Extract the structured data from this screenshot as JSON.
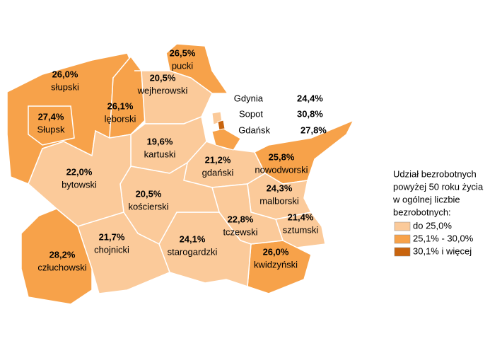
{
  "regions": [
    {
      "name": "słupski",
      "value": 26.0,
      "value_label": "26,0%",
      "color": "#f7a24a"
    },
    {
      "name": "Słupsk",
      "value": 27.4,
      "value_label": "27,4%",
      "color": "#f7a24a"
    },
    {
      "name": "lęborski",
      "value": 26.1,
      "value_label": "26,1%",
      "color": "#f7a24a"
    },
    {
      "name": "pucki",
      "value": 26.5,
      "value_label": "26,5%",
      "color": "#f7a24a"
    },
    {
      "name": "wejherowski",
      "value": 20.5,
      "value_label": "20,5%",
      "color": "#fbca9a"
    },
    {
      "name": "kartuski",
      "value": 19.6,
      "value_label": "19,6%",
      "color": "#fbca9a"
    },
    {
      "name": "gdański",
      "value": 21.2,
      "value_label": "21,2%",
      "color": "#fbca9a"
    },
    {
      "name": "nowodworski",
      "value": 25.8,
      "value_label": "25,8%",
      "color": "#f7a24a"
    },
    {
      "name": "malborski",
      "value": 24.3,
      "value_label": "24,3%",
      "color": "#fbca9a"
    },
    {
      "name": "sztumski",
      "value": 21.4,
      "value_label": "21,4%",
      "color": "#fbca9a"
    },
    {
      "name": "kwidzyński",
      "value": 26.0,
      "value_label": "26,0%",
      "color": "#f7a24a"
    },
    {
      "name": "tczewski",
      "value": 22.8,
      "value_label": "22,8%",
      "color": "#fbca9a"
    },
    {
      "name": "starogardzki",
      "value": 24.1,
      "value_label": "24,1%",
      "color": "#fbca9a"
    },
    {
      "name": "kościerski",
      "value": 20.5,
      "value_label": "20,5%",
      "color": "#fbca9a"
    },
    {
      "name": "bytowski",
      "value": 22.0,
      "value_label": "22,0%",
      "color": "#fbca9a"
    },
    {
      "name": "chojnicki",
      "value": 21.7,
      "value_label": "21,7%",
      "color": "#fbca9a"
    },
    {
      "name": "człuchowski",
      "value": 28.2,
      "value_label": "28,2%",
      "color": "#f7a24a"
    }
  ],
  "cities": [
    {
      "name": "Gdynia",
      "value": 24.4,
      "value_label": "24,4%",
      "color": "#fbca9a"
    },
    {
      "name": "Sopot",
      "value": 30.8,
      "value_label": "30,8%",
      "color": "#c8640e"
    },
    {
      "name": "Gdańsk",
      "value": 27.8,
      "value_label": "27,8%",
      "color": "#f7a24a"
    }
  ],
  "legend": {
    "title_lines": [
      "Udział bezrobotnych",
      "powyżej 50 roku życia",
      "w ogólnej liczbie",
      "bezrobotnych:"
    ],
    "items": [
      {
        "label": "do 25,0%",
        "color": "#fbca9a"
      },
      {
        "label": "25,1% - 30,0%",
        "color": "#f7a24a"
      },
      {
        "label": "30,1% i więcej",
        "color": "#c8640e"
      }
    ]
  }
}
